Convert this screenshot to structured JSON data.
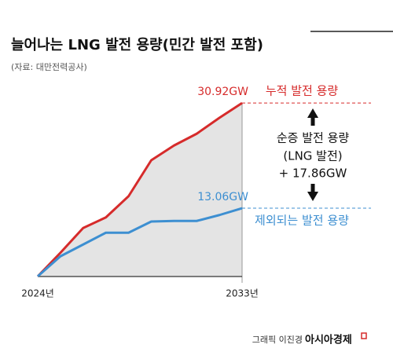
{
  "chart_data": {
    "type": "line",
    "title": "늘어나는 LNG 발전 용량(민간 발전 포함)",
    "subtitle": "(자료: 대만전력공사)",
    "categories": [
      "2024년",
      null,
      null,
      null,
      null,
      null,
      null,
      null,
      null,
      "2033년"
    ],
    "series": [
      {
        "name": "누적 발전 용량",
        "color": "#d62b2b",
        "values": [
          1.5,
          5.5,
          9.7,
          11.5,
          15.1,
          21.2,
          23.7,
          25.7,
          28.4,
          30.92
        ],
        "value_labels": [
          null,
          null,
          null,
          null,
          null,
          null,
          null,
          null,
          null,
          "30.92GW"
        ]
      },
      {
        "name": "제외되는 발전 용량",
        "color": "#3d8fd1",
        "values": [
          1.5,
          4.9,
          6.9,
          8.9,
          8.9,
          10.8,
          10.9,
          10.9,
          11.9,
          13.06
        ],
        "value_labels": [
          null,
          null,
          null,
          null,
          null,
          null,
          null,
          null,
          null,
          "13.06GW"
        ]
      }
    ],
    "ylim": [
      0,
      35
    ],
    "annotations": [
      "순증 발전 용량",
      "(LNG 발전)",
      "+ 17.86GW"
    ],
    "credit": "그래픽 이진경",
    "publisher": "아시아경제"
  }
}
